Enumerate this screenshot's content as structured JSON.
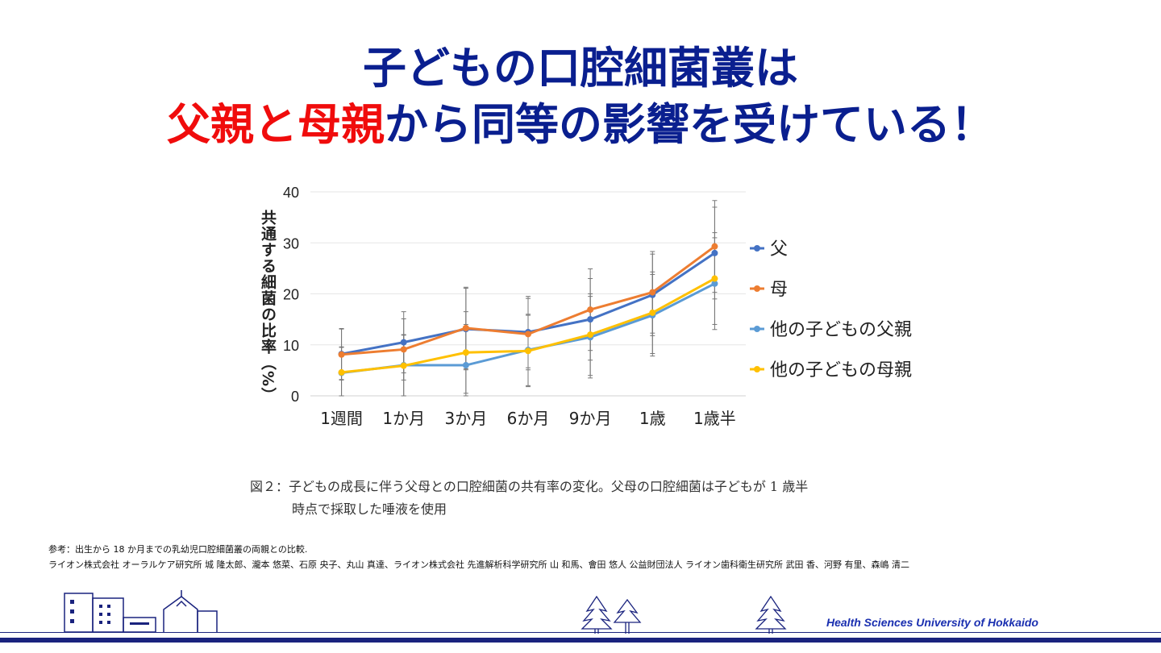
{
  "title": {
    "line1": "子どもの口腔細菌叢は",
    "line2_part1": "父親と",
    "line2_part2": "母親",
    "line2_part3": "から同等の影響を受けている！"
  },
  "chart_data": {
    "type": "line",
    "ylabel": "共通する細菌の比率（%）",
    "ylim": [
      0,
      40
    ],
    "yticks": [
      0,
      10,
      20,
      30,
      40
    ],
    "grid": true,
    "legend_position": "right",
    "categories": [
      "1週間",
      "1か月",
      "3か月",
      "6か月",
      "9か月",
      "1歳",
      "1歳半"
    ],
    "series": [
      {
        "name": "父",
        "color": "#4472C4",
        "values": [
          8.2,
          10.5,
          13.1,
          12.5,
          15.0,
          19.8,
          28.0
        ]
      },
      {
        "name": "母",
        "color": "#ED7D31",
        "values": [
          8.1,
          9.1,
          13.3,
          12.1,
          16.9,
          20.3,
          29.3
        ]
      },
      {
        "name": "他の子どもの父親",
        "color": "#5B9BD5",
        "values": [
          4.5,
          6.0,
          6.0,
          9.0,
          11.5,
          15.8,
          22.0
        ]
      },
      {
        "name": "他の子どもの母親",
        "color": "#FFC000",
        "values": [
          4.6,
          5.9,
          8.5,
          8.8,
          12.0,
          16.3,
          23.0
        ]
      }
    ],
    "error_bars": [
      5,
      6,
      8,
      7,
      8,
      8,
      9
    ]
  },
  "caption": {
    "line1": "図２：子どもの成長に伴う父母との口腔細菌の共有率の変化。父母の口腔細菌は子どもが 1 歳半",
    "line2": "時点で採取した唾液を使用"
  },
  "reference": {
    "line1": "参考：出生から 18 か月までの乳幼児口腔細菌叢の両親との比較.",
    "line2": "ライオン株式会社 オーラルケア研究所 城 隆太郎、瀧本 悠菜、石原 央子、丸山 真達、ライオン株式会社 先進解析科学研究所 山 和馬、會田 悠人 公益財団法人 ライオン歯科衛生研究所 武田 香、河野 有里、森嶋 清二"
  },
  "footer": {
    "university": "Health Sciences University of Hokkaido"
  }
}
